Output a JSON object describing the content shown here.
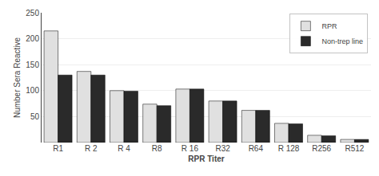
{
  "chart_data": {
    "type": "bar",
    "xlabel": "RPR Titer",
    "ylabel": "Number Sera Reactive",
    "categories": [
      "R1",
      "R 2",
      "R 4",
      "R8",
      "R 16",
      "R32",
      "R64",
      "R 128",
      "R256",
      "R512"
    ],
    "series": [
      {
        "name": "RPR",
        "color": "#e0e0e0",
        "values": [
          215,
          137,
          100,
          74,
          103,
          80,
          62,
          37,
          14,
          6
        ]
      },
      {
        "name": "Non-trep line",
        "color": "#2a2a2a",
        "values": [
          130,
          130,
          99,
          71,
          103,
          80,
          62,
          36,
          13,
          6
        ]
      }
    ],
    "ylim": [
      0,
      250
    ],
    "yticks": [
      50,
      100,
      150,
      200,
      250
    ],
    "grid": true,
    "legend": "upper right"
  }
}
